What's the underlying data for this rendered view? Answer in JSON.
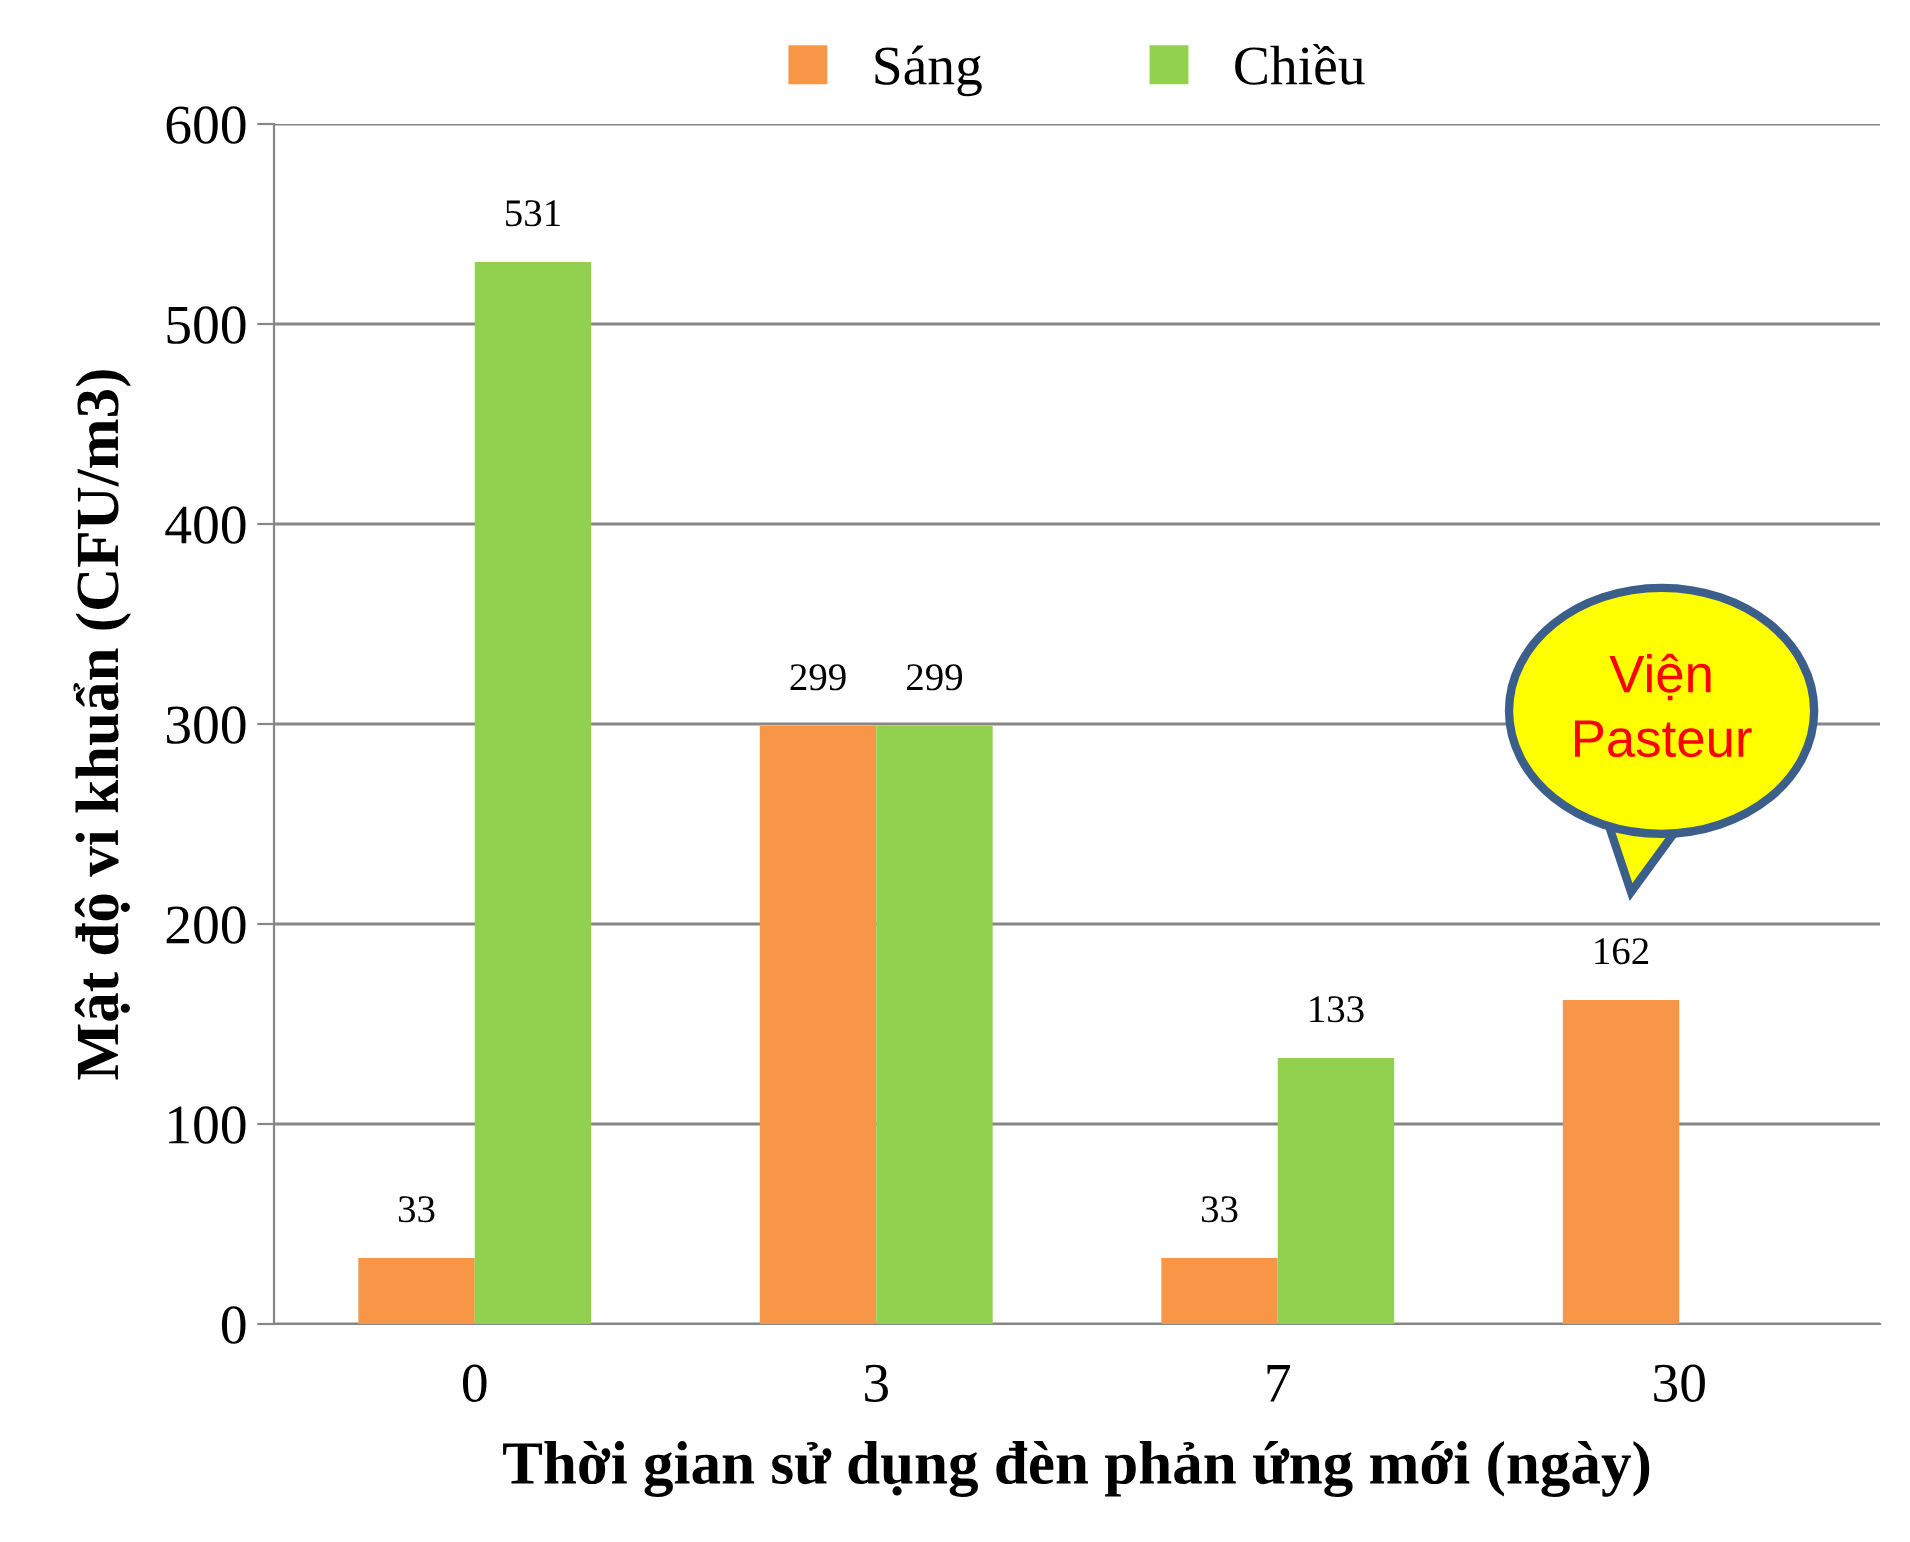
{
  "chart_data": {
    "type": "bar",
    "xlabel": "Thời gian sử dụng đèn phản ứng mới (ngày)",
    "ylabel": "Mật độ vi khuẩn (CFU/m3)",
    "categories": [
      "0",
      "3",
      "7",
      "30"
    ],
    "series": [
      {
        "name": "Sáng",
        "color": "#f79646",
        "values": [
          33,
          299,
          33,
          162
        ]
      },
      {
        "name": "Chiều",
        "color": "#92d050",
        "values": [
          531,
          299,
          133,
          null
        ]
      }
    ],
    "ylim": [
      0,
      600
    ],
    "yticks": [
      0,
      100,
      200,
      300,
      400,
      500,
      600
    ],
    "grid": "y",
    "legend": "top",
    "data_labels": true,
    "annotations": [
      "Viện\nPasteur"
    ]
  }
}
